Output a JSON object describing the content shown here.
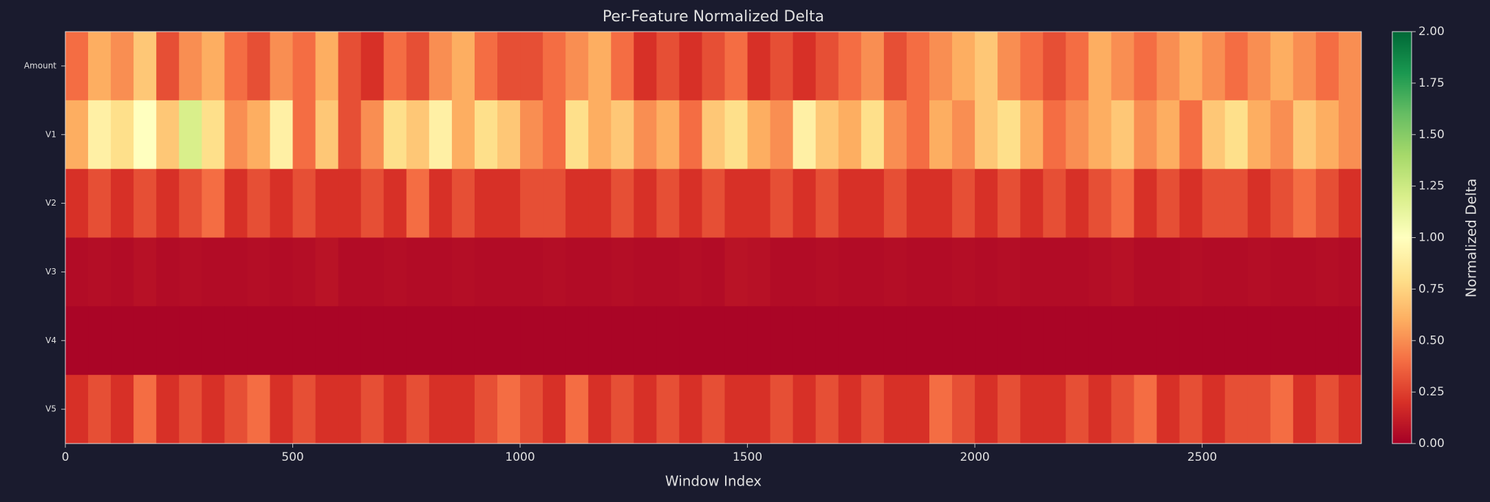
{
  "chart_data": {
    "type": "heatmap",
    "title": "Per-Feature Normalized Delta",
    "xlabel": "Window Index",
    "colorbar_label": "Normalized Delta",
    "rows": [
      "Amount",
      "V1",
      "V2",
      "V3",
      "V4",
      "V5"
    ],
    "values": [
      [
        0.4,
        0.6,
        0.5,
        0.7,
        0.3,
        0.5,
        0.6,
        0.4,
        0.3,
        0.5,
        0.4,
        0.6,
        0.3,
        0.2,
        0.4,
        0.3,
        0.5,
        0.6,
        0.4,
        0.3,
        0.3,
        0.4,
        0.5,
        0.6,
        0.4,
        0.2,
        0.3,
        0.2,
        0.3,
        0.4,
        0.2,
        0.3,
        0.2,
        0.3,
        0.4,
        0.5,
        0.3,
        0.4,
        0.5,
        0.6,
        0.7,
        0.5,
        0.4,
        0.3,
        0.4,
        0.6,
        0.5,
        0.4,
        0.5,
        0.6,
        0.5,
        0.4,
        0.5,
        0.6,
        0.5,
        0.4,
        0.5
      ],
      [
        0.6,
        0.9,
        0.8,
        1.0,
        0.7,
        1.2,
        0.8,
        0.5,
        0.6,
        0.9,
        0.4,
        0.7,
        0.3,
        0.5,
        0.8,
        0.7,
        0.9,
        0.6,
        0.8,
        0.7,
        0.5,
        0.4,
        0.8,
        0.6,
        0.7,
        0.5,
        0.6,
        0.4,
        0.7,
        0.8,
        0.6,
        0.5,
        0.9,
        0.7,
        0.6,
        0.8,
        0.5,
        0.4,
        0.6,
        0.5,
        0.7,
        0.8,
        0.6,
        0.4,
        0.5,
        0.6,
        0.7,
        0.5,
        0.6,
        0.4,
        0.7,
        0.8,
        0.6,
        0.5,
        0.7,
        0.6,
        0.5
      ],
      [
        0.2,
        0.3,
        0.2,
        0.3,
        0.2,
        0.3,
        0.4,
        0.2,
        0.3,
        0.2,
        0.3,
        0.2,
        0.2,
        0.3,
        0.2,
        0.4,
        0.2,
        0.3,
        0.2,
        0.2,
        0.3,
        0.3,
        0.2,
        0.2,
        0.3,
        0.2,
        0.3,
        0.2,
        0.3,
        0.2,
        0.2,
        0.3,
        0.2,
        0.3,
        0.2,
        0.2,
        0.3,
        0.2,
        0.2,
        0.3,
        0.2,
        0.3,
        0.2,
        0.3,
        0.2,
        0.3,
        0.4,
        0.2,
        0.3,
        0.2,
        0.3,
        0.3,
        0.2,
        0.3,
        0.4,
        0.3,
        0.2
      ],
      [
        0.05,
        0.06,
        0.05,
        0.07,
        0.05,
        0.06,
        0.05,
        0.05,
        0.06,
        0.05,
        0.06,
        0.08,
        0.05,
        0.05,
        0.06,
        0.05,
        0.05,
        0.06,
        0.05,
        0.05,
        0.05,
        0.06,
        0.05,
        0.05,
        0.06,
        0.05,
        0.05,
        0.06,
        0.05,
        0.08,
        0.07,
        0.05,
        0.05,
        0.06,
        0.05,
        0.05,
        0.06,
        0.05,
        0.05,
        0.06,
        0.05,
        0.06,
        0.05,
        0.05,
        0.05,
        0.06,
        0.07,
        0.05,
        0.05,
        0.06,
        0.05,
        0.05,
        0.06,
        0.05,
        0.05,
        0.06,
        0.05
      ],
      [
        0.02,
        0.02,
        0.02,
        0.02,
        0.02,
        0.02,
        0.02,
        0.02,
        0.02,
        0.02,
        0.02,
        0.02,
        0.02,
        0.02,
        0.02,
        0.02,
        0.02,
        0.02,
        0.02,
        0.02,
        0.02,
        0.02,
        0.02,
        0.02,
        0.02,
        0.02,
        0.02,
        0.02,
        0.02,
        0.02,
        0.02,
        0.02,
        0.02,
        0.02,
        0.02,
        0.02,
        0.02,
        0.02,
        0.02,
        0.02,
        0.02,
        0.02,
        0.02,
        0.02,
        0.02,
        0.02,
        0.02,
        0.02,
        0.02,
        0.02,
        0.02,
        0.02,
        0.02,
        0.02,
        0.02,
        0.02,
        0.02
      ],
      [
        0.2,
        0.3,
        0.2,
        0.4,
        0.2,
        0.3,
        0.2,
        0.3,
        0.4,
        0.2,
        0.3,
        0.2,
        0.2,
        0.3,
        0.2,
        0.3,
        0.2,
        0.2,
        0.3,
        0.4,
        0.3,
        0.2,
        0.4,
        0.2,
        0.3,
        0.2,
        0.3,
        0.2,
        0.3,
        0.2,
        0.2,
        0.3,
        0.2,
        0.3,
        0.2,
        0.3,
        0.2,
        0.2,
        0.4,
        0.3,
        0.2,
        0.3,
        0.2,
        0.2,
        0.3,
        0.2,
        0.3,
        0.4,
        0.2,
        0.3,
        0.2,
        0.3,
        0.3,
        0.4,
        0.2,
        0.3,
        0.2
      ]
    ],
    "xlim": [
      0,
      2850
    ],
    "xticks": [
      0,
      500,
      1000,
      1500,
      2000,
      2500
    ],
    "clim": [
      0,
      2
    ],
    "cticks": [
      {
        "value": 0,
        "label": "0.00"
      },
      {
        "value": 0.25,
        "label": "0.25"
      },
      {
        "value": 0.5,
        "label": "0.50"
      },
      {
        "value": 0.75,
        "label": "0.75"
      },
      {
        "value": 1,
        "label": "1.00"
      },
      {
        "value": 1.25,
        "label": "1.25"
      },
      {
        "value": 1.5,
        "label": "1.50"
      },
      {
        "value": 1.75,
        "label": "1.75"
      },
      {
        "value": 2,
        "label": "2.00"
      }
    ],
    "colormap": [
      "#a50026",
      "#d73027",
      "#f46d43",
      "#fdae61",
      "#fee08b",
      "#ffffbf",
      "#d9ef8b",
      "#a6d96a",
      "#66bd63",
      "#1a9850",
      "#006837"
    ]
  }
}
